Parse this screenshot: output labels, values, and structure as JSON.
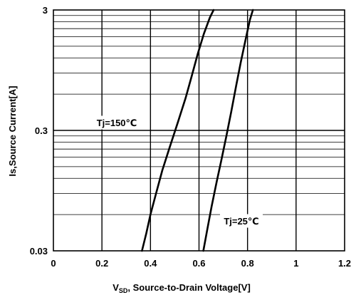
{
  "chart_data": {
    "type": "line",
    "title": "",
    "xlabel": {
      "prefix": "V",
      "subscript": "SD",
      "suffix": ",  Source-to-Drain Voltage[V]"
    },
    "ylabel": "Is,Source Current[A]",
    "x_scale": "linear",
    "y_scale": "log",
    "xlim": [
      0,
      1.2
    ],
    "ylim": [
      0.03,
      3
    ],
    "x_ticks": [
      0,
      0.2,
      0.4,
      0.6,
      0.8,
      1,
      1.2
    ],
    "x_tick_labels": [
      "0",
      "0.2",
      "0.4",
      "0.6",
      "0.8",
      "1",
      "1.2"
    ],
    "y_ticks": [
      0.03,
      0.3,
      3
    ],
    "y_tick_labels": [
      "0.03",
      "0.3",
      "3"
    ],
    "grid": true,
    "colors": {
      "line": "#000000",
      "grid": "#000000",
      "background": "#ffffff"
    },
    "series": [
      {
        "name": "Tj=150℃",
        "x": [
          0.365,
          0.383,
          0.4,
          0.423,
          0.449,
          0.48,
          0.513,
          0.545,
          0.57,
          0.595,
          0.62,
          0.645,
          0.66
        ],
        "y": [
          0.03,
          0.042,
          0.06,
          0.09,
          0.14,
          0.22,
          0.35,
          0.56,
          0.85,
          1.3,
          1.9,
          2.6,
          3.0
        ]
      },
      {
        "name": "Tj=25℃",
        "x": [
          0.618,
          0.634,
          0.652,
          0.672,
          0.692,
          0.713,
          0.733,
          0.753,
          0.772,
          0.792,
          0.81,
          0.822
        ],
        "y": [
          0.03,
          0.045,
          0.07,
          0.11,
          0.17,
          0.27,
          0.43,
          0.7,
          1.1,
          1.7,
          2.5,
          3.0
        ]
      }
    ],
    "annotations": [
      {
        "text": "Tj=150℃",
        "series": 0
      },
      {
        "text": "Tj=25℃",
        "series": 1
      }
    ]
  }
}
